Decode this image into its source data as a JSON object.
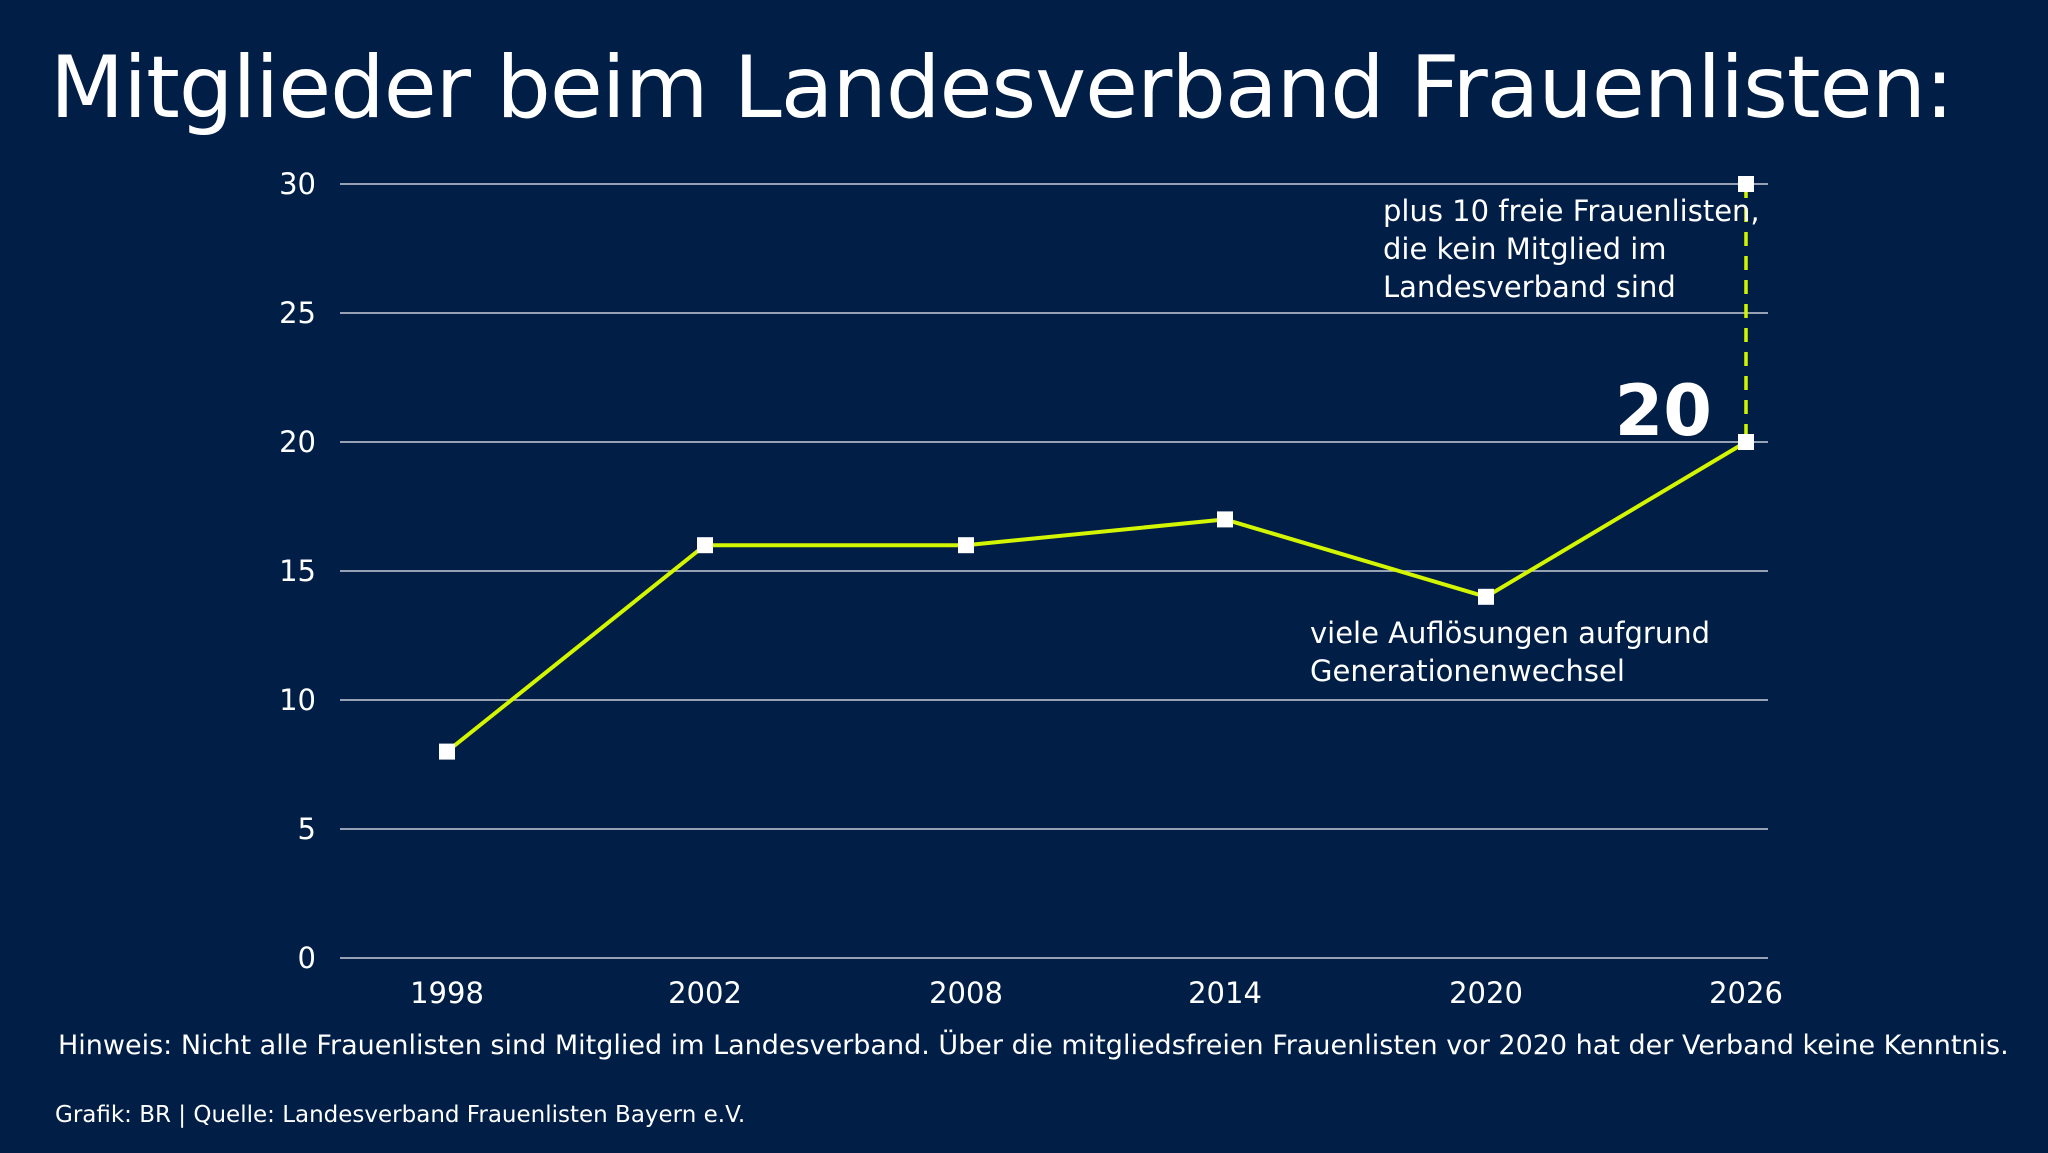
{
  "title": "Mitglieder beim Landesverband Frauenlisten:",
  "note": "Hinweis: Nicht alle Frauenlisten sind Mitglied im Landesverband. Über die mitgliedsfreien Frauenlisten vor 2020 hat der Verband keine Kenntnis.",
  "source": "Grafik: BR | Quelle: Landesverband Frauenlisten Bayern e.V.",
  "colors": {
    "background": "#001e46",
    "line": "#d4f500",
    "marker": "#ffffff",
    "grid": "#c8cdd8"
  },
  "chart_data": {
    "type": "line",
    "categories": [
      "1998",
      "2002",
      "2008",
      "2014",
      "2020",
      "2026"
    ],
    "values": [
      8,
      16,
      16,
      17,
      14,
      20
    ],
    "ylim": [
      0,
      30
    ],
    "yticks": [
      "0",
      "5",
      "10",
      "15",
      "20",
      "25",
      "30"
    ],
    "grid": true,
    "extra_point": {
      "x": "2026",
      "y": 30,
      "style": "dashed"
    },
    "value_label": "20",
    "annotations": [
      {
        "lines": [
          "plus 10 freie Frauenlisten,",
          "die kein Mitglied im",
          "Landesverband sind"
        ]
      },
      {
        "lines": [
          "viele Auflösungen aufgrund",
          "Generationenwechsel"
        ]
      }
    ]
  }
}
